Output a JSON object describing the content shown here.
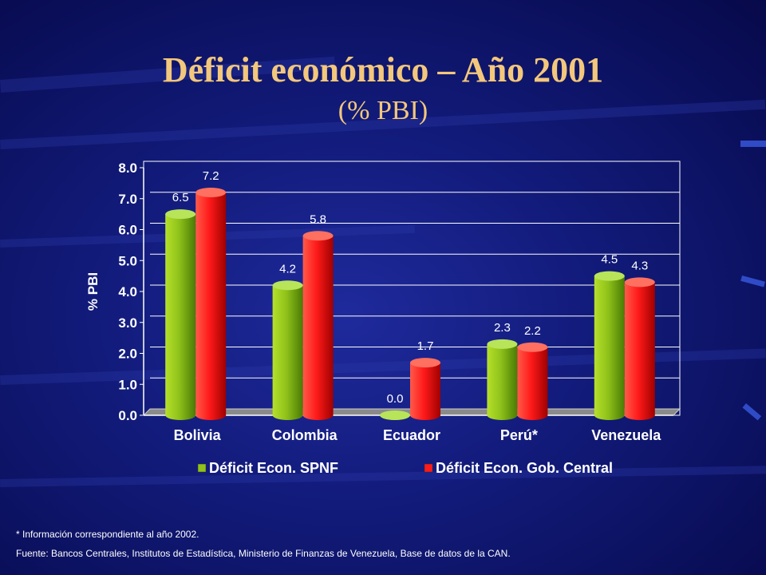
{
  "slide": {
    "title": "Déficit económico – Año 2001",
    "subtitle": "(% PBI)",
    "footnote": "* Información correspondiente al año 2002.",
    "source": "Fuente: Bancos Centrales, Institutos de Estadística, Ministerio de Finanzas de Venezuela,  Base de datos de la CAN."
  },
  "colors": {
    "title": "#f3c77c",
    "series_green": "#8fc21a",
    "series_red": "#ff1a1a",
    "background": "#111a78"
  },
  "chart_data": {
    "type": "bar",
    "ylabel": "% PBI",
    "ylim": [
      0,
      8
    ],
    "yticks": [
      "0.0",
      "1.0",
      "2.0",
      "3.0",
      "4.0",
      "5.0",
      "6.0",
      "7.0",
      "8.0"
    ],
    "grid": true,
    "legend_position": "bottom",
    "categories": [
      "Bolivia",
      "Colombia",
      "Ecuador",
      "Perú*",
      "Venezuela"
    ],
    "series": [
      {
        "name": "Déficit Econ. SPNF",
        "values": [
          6.5,
          4.2,
          0.0,
          2.3,
          4.5
        ],
        "labels": [
          "6.5",
          "4.2",
          "0.0",
          "2.3",
          "4.5"
        ]
      },
      {
        "name": "Déficit Econ. Gob. Central",
        "values": [
          7.2,
          5.8,
          1.7,
          2.2,
          4.3
        ],
        "labels": [
          "7.2",
          "5.8",
          "1.7",
          "2.2",
          "4.3"
        ]
      }
    ]
  }
}
